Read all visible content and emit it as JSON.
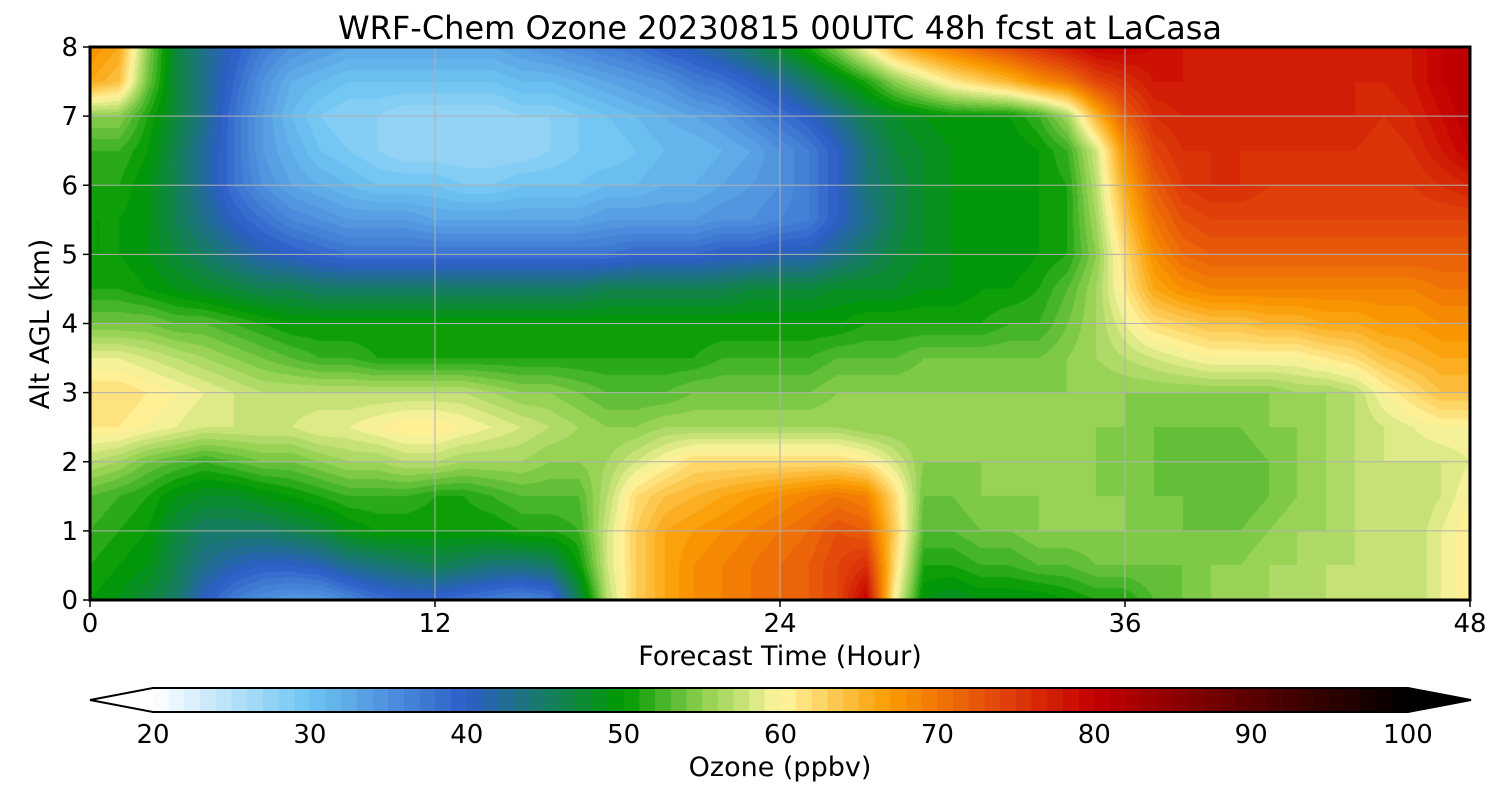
{
  "chart_data": {
    "type": "heatmap",
    "title": "WRF-Chem Ozone  20230815 00UTC 48h fcst at LaCasa",
    "xlabel": "Forecast Time (Hour)",
    "ylabel": "Alt AGL (km)",
    "xlim": [
      0,
      48
    ],
    "ylim": [
      0,
      8
    ],
    "xticks": [
      0,
      12,
      24,
      36,
      48
    ],
    "yticks": [
      0,
      1,
      2,
      3,
      4,
      5,
      6,
      7,
      8
    ],
    "grid": true,
    "colorbar": {
      "label": "Ozone  (ppbv)",
      "min": 20,
      "max": 100,
      "step": 1,
      "ticks": [
        20,
        30,
        40,
        50,
        60,
        70,
        80,
        90,
        100
      ],
      "extend": "both",
      "stops": [
        {
          "value": 20,
          "color": "#ffffff"
        },
        {
          "value": 30,
          "color": "#6ec4f2"
        },
        {
          "value": 40,
          "color": "#2d5ec8"
        },
        {
          "value": 50,
          "color": "#009a00"
        },
        {
          "value": 55,
          "color": "#8ccf4e"
        },
        {
          "value": 60,
          "color": "#fff5a0"
        },
        {
          "value": 67,
          "color": "#fb9b00"
        },
        {
          "value": 74,
          "color": "#e2450b"
        },
        {
          "value": 80,
          "color": "#c40000"
        },
        {
          "value": 90,
          "color": "#5a0000"
        },
        {
          "value": 100,
          "color": "#000000"
        }
      ]
    },
    "x": [
      0,
      1,
      2,
      3,
      4,
      5,
      6,
      7,
      8,
      9,
      10,
      11,
      12,
      13,
      14,
      15,
      16,
      17,
      18,
      19,
      20,
      21,
      22,
      23,
      24,
      25,
      26,
      27,
      28,
      29,
      30,
      31,
      32,
      33,
      34,
      35,
      36,
      37,
      38,
      39,
      40,
      41,
      42,
      43,
      44,
      45,
      46,
      47,
      48
    ],
    "y": [
      0,
      0.5,
      1,
      1.5,
      2,
      2.5,
      3,
      3.5,
      4,
      4.5,
      5,
      5.5,
      6,
      6.5,
      7,
      7.5,
      8
    ],
    "z": [
      [
        50,
        49,
        47,
        45,
        40,
        37,
        35,
        34,
        34,
        36,
        38,
        39,
        39,
        38,
        37,
        36,
        37,
        46,
        57,
        63,
        66,
        68,
        69,
        70,
        71,
        72,
        74,
        80,
        60,
        49,
        48,
        49,
        49,
        49,
        50,
        51,
        51,
        53,
        54,
        55,
        56,
        56,
        57,
        57,
        57,
        57,
        57,
        59,
        61
      ],
      [
        51,
        50,
        49,
        46,
        43,
        41,
        40,
        40,
        41,
        43,
        44,
        45,
        46,
        45,
        44,
        44,
        45,
        50,
        58,
        63,
        66,
        68,
        69,
        70,
        71,
        72,
        74,
        76,
        62,
        51,
        51,
        52,
        52,
        53,
        53,
        54,
        54,
        54,
        54,
        55,
        55,
        56,
        56,
        57,
        57,
        57,
        57,
        59,
        61
      ],
      [
        52,
        51,
        50,
        47,
        45,
        45,
        45,
        46,
        47,
        49,
        50,
        50,
        50,
        50,
        50,
        51,
        51,
        52,
        58,
        63,
        66,
        67,
        68,
        69,
        70,
        71,
        73,
        72,
        63,
        53,
        53,
        54,
        54,
        55,
        55,
        55,
        55,
        55,
        54,
        54,
        54,
        55,
        56,
        56,
        57,
        57,
        57,
        59,
        61
      ],
      [
        53,
        52,
        51,
        49,
        48,
        48,
        49,
        50,
        51,
        52,
        52,
        52,
        51,
        51,
        52,
        53,
        53,
        53,
        57,
        62,
        64,
        65,
        66,
        67,
        68,
        69,
        70,
        69,
        62,
        54,
        54,
        55,
        55,
        55,
        55,
        55,
        55,
        54,
        54,
        53,
        53,
        54,
        55,
        56,
        57,
        57,
        57,
        58,
        60
      ],
      [
        57,
        56,
        54,
        53,
        52,
        53,
        54,
        54,
        55,
        56,
        56,
        57,
        57,
        56,
        56,
        56,
        55,
        55,
        56,
        58,
        60,
        62,
        62,
        62,
        62,
        62,
        62,
        61,
        58,
        55,
        55,
        55,
        55,
        55,
        55,
        55,
        54,
        54,
        53,
        53,
        53,
        54,
        55,
        56,
        57,
        58,
        58,
        58,
        59
      ],
      [
        61,
        61,
        60,
        59,
        58,
        58,
        58,
        58,
        59,
        59,
        60,
        61,
        61,
        60,
        59,
        58,
        57,
        56,
        55,
        55,
        56,
        56,
        56,
        56,
        56,
        56,
        56,
        55,
        55,
        55,
        55,
        55,
        55,
        55,
        55,
        55,
        55,
        54,
        54,
        54,
        54,
        55,
        55,
        56,
        57,
        58,
        59,
        60,
        60
      ],
      [
        62,
        62,
        61,
        60,
        59,
        58,
        57,
        57,
        57,
        57,
        57,
        57,
        57,
        57,
        56,
        55,
        55,
        54,
        53,
        53,
        53,
        54,
        54,
        54,
        54,
        54,
        55,
        55,
        55,
        55,
        55,
        55,
        55,
        55,
        55,
        55,
        55,
        55,
        55,
        55,
        55,
        55,
        56,
        56,
        57,
        60,
        62,
        64,
        64
      ],
      [
        59,
        59,
        58,
        57,
        56,
        55,
        54,
        53,
        52,
        52,
        51,
        51,
        51,
        51,
        51,
        51,
        51,
        51,
        51,
        51,
        51,
        51,
        52,
        52,
        52,
        52,
        53,
        53,
        53,
        54,
        54,
        54,
        54,
        54,
        55,
        56,
        57,
        58,
        59,
        60,
        60,
        60,
        60,
        61,
        62,
        64,
        65,
        66,
        66
      ],
      [
        54,
        54,
        54,
        53,
        53,
        52,
        51,
        50,
        50,
        50,
        50,
        50,
        50,
        50,
        50,
        50,
        50,
        50,
        50,
        50,
        50,
        50,
        50,
        50,
        50,
        50,
        50,
        51,
        51,
        51,
        51,
        51,
        52,
        52,
        54,
        56,
        59,
        62,
        63,
        64,
        64,
        65,
        65,
        66,
        66,
        67,
        67,
        68,
        68
      ],
      [
        51,
        51,
        50,
        49,
        48,
        47,
        46,
        46,
        45,
        45,
        45,
        45,
        45,
        45,
        45,
        45,
        45,
        45,
        46,
        46,
        46,
        46,
        46,
        47,
        47,
        47,
        48,
        48,
        48,
        49,
        49,
        50,
        50,
        51,
        53,
        56,
        61,
        66,
        68,
        69,
        69,
        69,
        69,
        69,
        69,
        69,
        69,
        70,
        70
      ],
      [
        50,
        50,
        49,
        47,
        45,
        43,
        41,
        40,
        39,
        38,
        38,
        38,
        38,
        38,
        38,
        38,
        38,
        38,
        38,
        39,
        39,
        39,
        40,
        40,
        41,
        41,
        43,
        45,
        47,
        48,
        49,
        49,
        49,
        50,
        51,
        55,
        62,
        68,
        71,
        72,
        72,
        72,
        72,
        72,
        72,
        72,
        72,
        72,
        72
      ],
      [
        50,
        50,
        49,
        46,
        43,
        40,
        38,
        36,
        35,
        34,
        34,
        34,
        33,
        33,
        33,
        33,
        33,
        33,
        34,
        34,
        34,
        34,
        35,
        35,
        36,
        37,
        40,
        43,
        46,
        48,
        49,
        49,
        49,
        50,
        51,
        56,
        64,
        70,
        73,
        74,
        74,
        74,
        74,
        74,
        74,
        74,
        74,
        74,
        74
      ],
      [
        51,
        51,
        49,
        46,
        42,
        38,
        35,
        33,
        32,
        31,
        30,
        30,
        30,
        29,
        29,
        30,
        30,
        30,
        31,
        31,
        32,
        32,
        33,
        34,
        35,
        37,
        40,
        44,
        46,
        48,
        49,
        49,
        49,
        50,
        51,
        57,
        66,
        72,
        75,
        76,
        76,
        75,
        75,
        75,
        75,
        75,
        75,
        76,
        77
      ],
      [
        52,
        52,
        50,
        46,
        42,
        38,
        34,
        32,
        30,
        29,
        28,
        27,
        27,
        27,
        27,
        27,
        28,
        29,
        29,
        30,
        31,
        31,
        32,
        33,
        35,
        37,
        40,
        44,
        47,
        48,
        49,
        49,
        49,
        50,
        52,
        58,
        68,
        74,
        76,
        76,
        76,
        76,
        76,
        76,
        76,
        75,
        76,
        78,
        80
      ],
      [
        55,
        55,
        51,
        47,
        43,
        38,
        34,
        31,
        29,
        28,
        28,
        27,
        27,
        27,
        27,
        28,
        28,
        29,
        30,
        31,
        32,
        33,
        34,
        36,
        38,
        40,
        43,
        46,
        48,
        49,
        50,
        50,
        50,
        52,
        56,
        65,
        72,
        76,
        77,
        77,
        77,
        77,
        77,
        77,
        77,
        76,
        77,
        79,
        81
      ],
      [
        66,
        64,
        54,
        47,
        43,
        39,
        35,
        32,
        31,
        30,
        30,
        30,
        30,
        30,
        30,
        31,
        31,
        32,
        33,
        34,
        35,
        37,
        38,
        40,
        42,
        45,
        48,
        51,
        55,
        58,
        61,
        63,
        65,
        68,
        70,
        74,
        76,
        78,
        78,
        77,
        77,
        77,
        77,
        77,
        77,
        77,
        78,
        80,
        81
      ],
      [
        68,
        66,
        55,
        47,
        43,
        40,
        37,
        35,
        34,
        33,
        33,
        33,
        33,
        33,
        33,
        34,
        35,
        36,
        37,
        38,
        40,
        41,
        43,
        45,
        48,
        51,
        55,
        60,
        65,
        68,
        70,
        72,
        74,
        76,
        78,
        80,
        80,
        79,
        78,
        77,
        77,
        77,
        77,
        77,
        77,
        77,
        78,
        80,
        81
      ]
    ]
  }
}
